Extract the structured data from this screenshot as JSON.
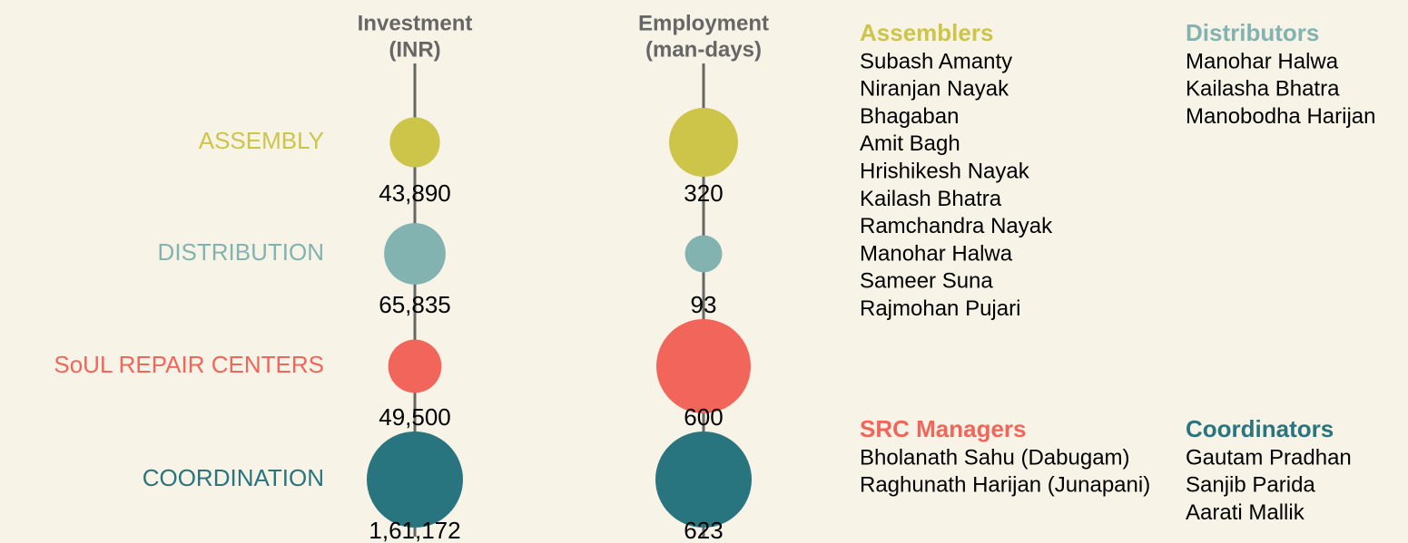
{
  "chart_data": {
    "type": "bubble",
    "categories": [
      "ASSEMBLY",
      "DISTRIBUTION",
      "SoUL REPAIR CENTERS",
      "COORDINATION"
    ],
    "colors": [
      "#cdc54a",
      "#82b3b0",
      "#f2655b",
      "#29757f"
    ],
    "series": [
      {
        "name": "Investment",
        "unit": "(INR)",
        "values": [
          43890,
          65835,
          49500,
          161172
        ],
        "value_labels": [
          "43,890",
          "65,835",
          "49,500",
          "1,61,172"
        ]
      },
      {
        "name": "Employment",
        "unit": "(man-days)",
        "values": [
          320,
          93,
          600,
          623
        ]
      }
    ]
  },
  "groups": [
    {
      "title": "Assemblers",
      "color": "#cdc54a",
      "names": [
        "Subash Amanty",
        "Niranjan Nayak",
        "Bhagaban",
        "Amit Bagh",
        "Hrishikesh Nayak",
        "Kailash Bhatra",
        "Ramchandra Nayak",
        "Manohar Halwa",
        "Sameer Suna",
        "Rajmohan Pujari"
      ]
    },
    {
      "title": "Distributors",
      "color": "#82b3b0",
      "names": [
        "Manohar Halwa",
        "Kailasha Bhatra",
        "Manobodha Harijan"
      ]
    },
    {
      "title": "SRC Managers",
      "color": "#f2655b",
      "names": [
        "Bholanath Sahu (Dabugam)",
        "Raghunath Harijan (Junapani)"
      ]
    },
    {
      "title": "Coordinators",
      "color": "#29757f",
      "names": [
        "Gautam Pradhan",
        "Sanjib Parida",
        "Aarati Mallik"
      ]
    }
  ]
}
